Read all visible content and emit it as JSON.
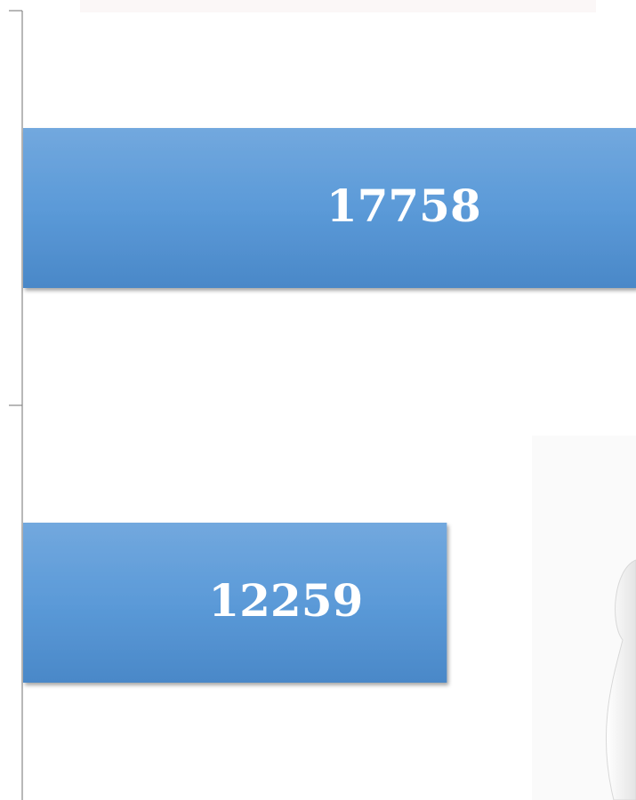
{
  "chart_data": {
    "type": "bar",
    "orientation": "horizontal",
    "categories": [
      null,
      null
    ],
    "values": [
      17758,
      12259
    ],
    "color": "#5596d6"
  }
}
